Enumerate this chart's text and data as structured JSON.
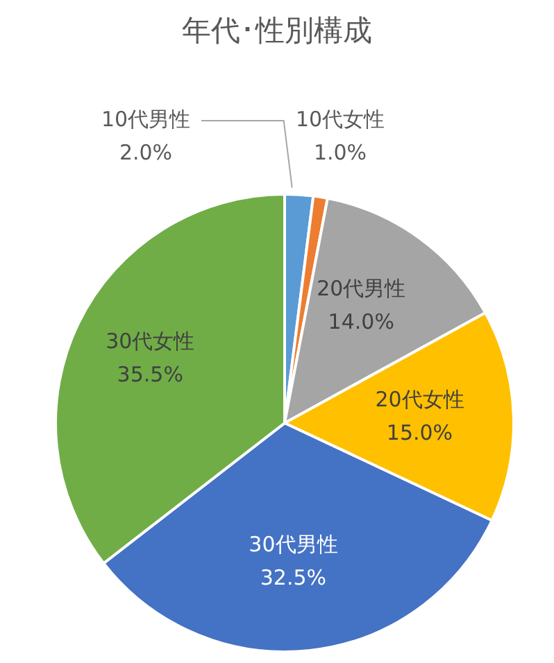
{
  "chart_data": {
    "type": "pie",
    "title": "年代･性別構成",
    "categories": [
      "10代男性",
      "10代女性",
      "20代男性",
      "20代女性",
      "30代男性",
      "30代女性"
    ],
    "values": [
      2.0,
      1.0,
      14.0,
      15.0,
      32.5,
      35.5
    ],
    "colors": [
      "#5b9bd5",
      "#ed7d31",
      "#a5a5a5",
      "#ffc000",
      "#4472c4",
      "#70ad47"
    ],
    "value_labels": [
      "2.0%",
      "1.0%",
      "14.0%",
      "15.0%",
      "32.5%",
      "35.5%"
    ],
    "legend": false
  }
}
